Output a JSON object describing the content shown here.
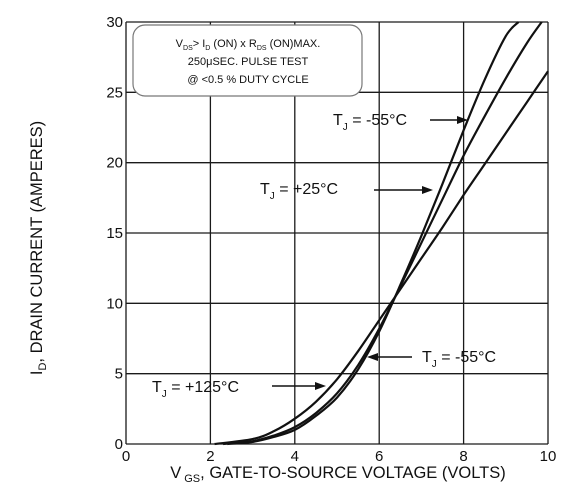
{
  "chart_data": {
    "type": "line",
    "xlabel_symbol": "V",
    "xlabel_sub": "GS",
    "xlabel_rest": ", GATE-TO-SOURCE VOLTAGE (VOLTS)",
    "ylabel_symbol": "I",
    "ylabel_sub": "D",
    "ylabel_rest": ", DRAIN CURRENT (AMPERES)",
    "xlim": [
      0,
      10
    ],
    "ylim": [
      0,
      30
    ],
    "xticks": [
      "0",
      "2",
      "4",
      "6",
      "8",
      "10"
    ],
    "yticks": [
      "0",
      "5",
      "10",
      "15",
      "20",
      "25",
      "30"
    ],
    "grid": true,
    "note": {
      "line1": {
        "p1": "V",
        "s1": "DS",
        "p2": "> I",
        "s2": "D",
        "p3": " (ON) x  R",
        "s3": "DS",
        "p4": " (ON)MAX."
      },
      "line2": "250μSEC. PULSE TEST",
      "line3": "@ <0.5 % DUTY CYCLE"
    },
    "series": [
      {
        "name": "T_J = -55°C",
        "x": [
          2.4,
          3.0,
          3.5,
          4.0,
          4.5,
          5.0,
          5.5,
          6.0,
          6.5,
          7.0,
          7.5,
          8.0,
          8.5,
          9.0,
          9.3
        ],
        "y": [
          0,
          0.15,
          0.5,
          1.0,
          2.0,
          3.3,
          5.3,
          8.0,
          11.3,
          14.8,
          18.5,
          22.3,
          25.9,
          29.0,
          30.0
        ]
      },
      {
        "name": "T_J = +25°C",
        "x": [
          2.3,
          3.0,
          3.5,
          4.0,
          4.5,
          5.0,
          5.5,
          6.0,
          6.5,
          7.0,
          7.5,
          8.0,
          8.5,
          9.0,
          9.5,
          9.85
        ],
        "y": [
          0,
          0.2,
          0.6,
          1.2,
          2.2,
          3.6,
          5.6,
          8.2,
          11.2,
          14.3,
          17.4,
          20.5,
          23.3,
          26.0,
          28.5,
          30.0
        ]
      },
      {
        "name": "T_J = +125°C",
        "x": [
          2.1,
          3.0,
          3.5,
          4.0,
          4.5,
          5.0,
          5.5,
          6.0,
          6.5,
          7.0,
          7.5,
          8.0,
          8.5,
          9.0,
          9.5,
          10.0
        ],
        "y": [
          0,
          0.35,
          0.9,
          1.8,
          3.0,
          4.6,
          6.6,
          8.8,
          11.0,
          13.2,
          15.4,
          17.7,
          19.9,
          22.1,
          24.3,
          26.5
        ]
      }
    ],
    "annotations": [
      {
        "prefix": "T",
        "sub": "J",
        "text": " = -55°C"
      },
      {
        "prefix": "T",
        "sub": "J",
        "text": " = +25°C"
      },
      {
        "prefix": "T",
        "sub": "J",
        "text": " = -55°C"
      },
      {
        "prefix": "T",
        "sub": "J",
        "text": " = +125°C"
      }
    ]
  }
}
